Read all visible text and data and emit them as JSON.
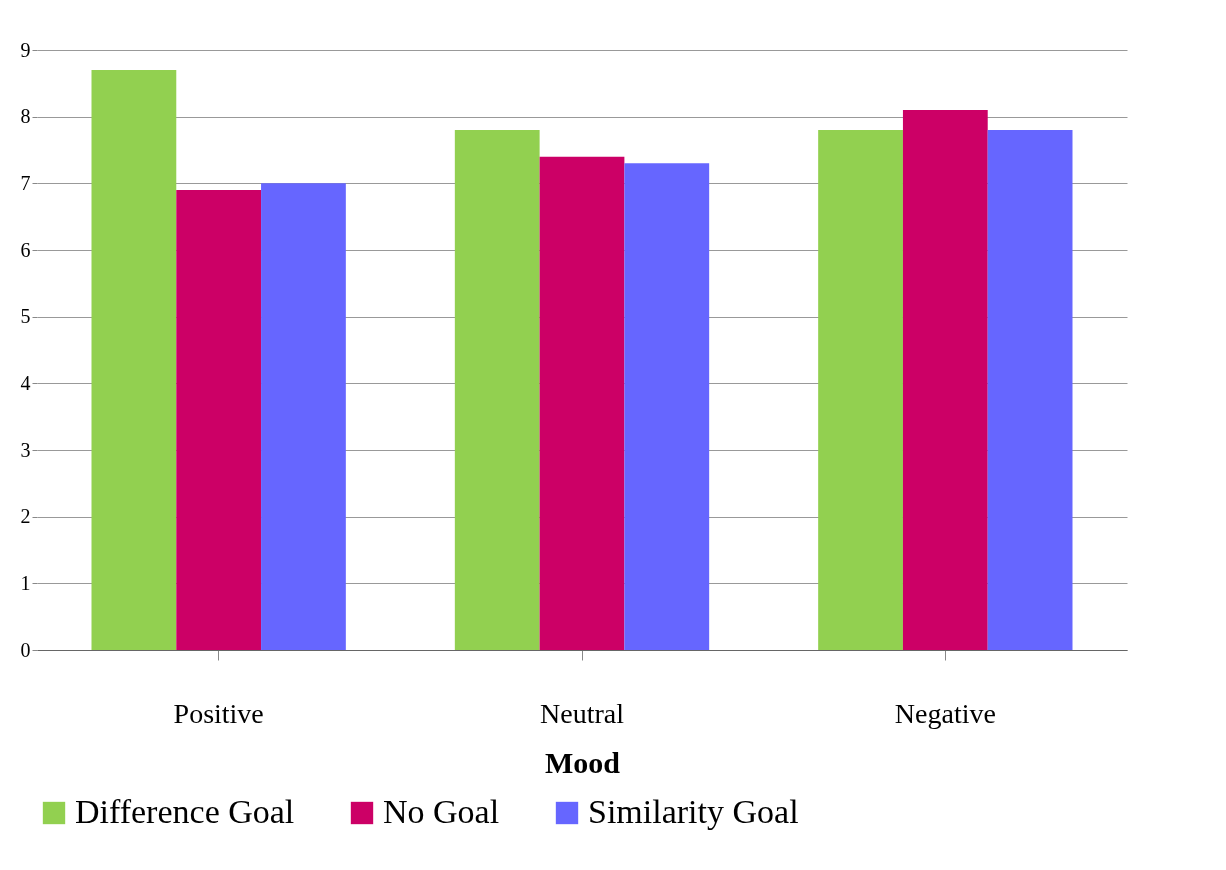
{
  "chart_data": {
    "type": "bar",
    "xlabel": "Mood",
    "categories": [
      "Positive",
      "Neutral",
      "Negative"
    ],
    "series": [
      {
        "name": "Difference Goal",
        "color": "#92d050",
        "values": [
          8.7,
          7.8,
          7.8
        ]
      },
      {
        "name": "No Goal",
        "color": "#cc0066",
        "values": [
          6.9,
          7.4,
          8.1
        ]
      },
      {
        "name": "Similarity Goal",
        "color": "#6666ff",
        "values": [
          7.0,
          7.3,
          7.8
        ]
      }
    ],
    "ylim": [
      0,
      9
    ],
    "yticks": [
      0,
      1,
      2,
      3,
      4,
      5,
      6,
      7,
      8,
      9
    ],
    "grid": "y",
    "legend": "bottom"
  }
}
